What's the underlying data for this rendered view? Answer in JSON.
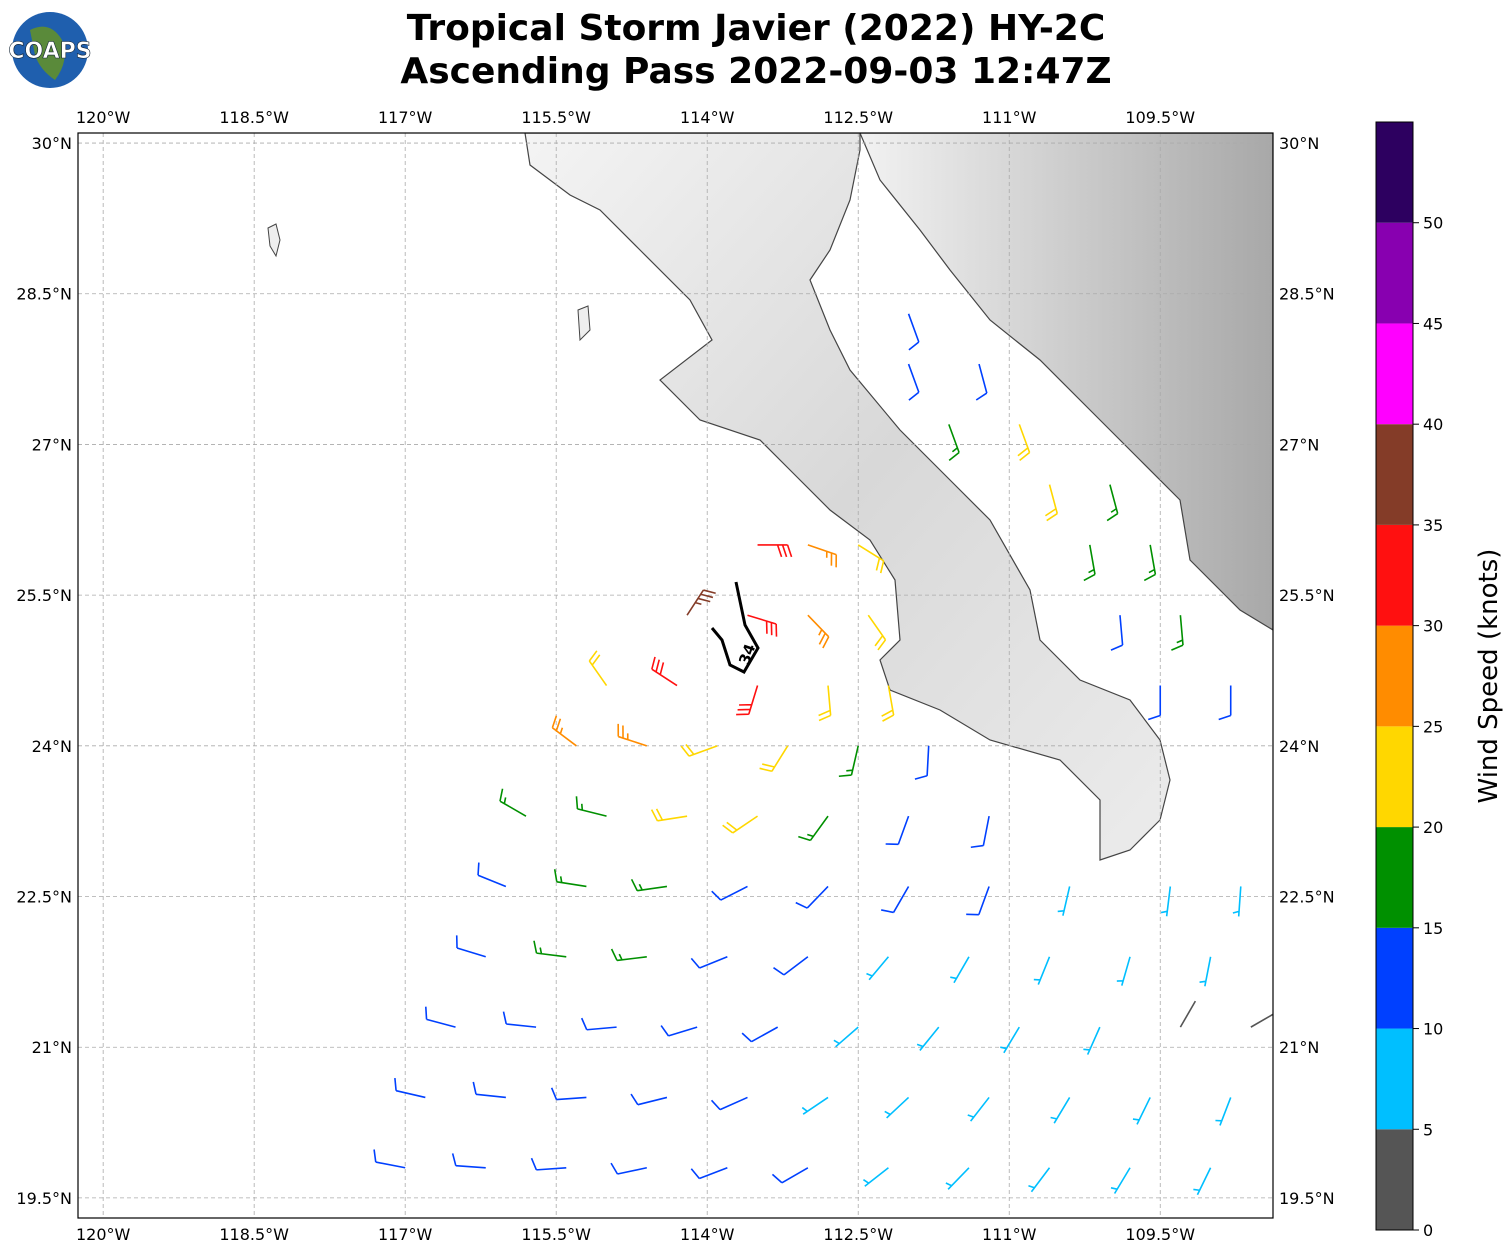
{
  "logo": "COAPS",
  "title": [
    "Tropical Storm Javier (2022) HY-2C",
    "Ascending Pass 2022-09-03 12:47Z"
  ],
  "map": {
    "xlim": [
      -120.25,
      -108.38
    ],
    "ylim": [
      19.3,
      30.1
    ],
    "xticks": [
      {
        "value": -120,
        "label": "120°W"
      },
      {
        "value": -118.5,
        "label": "118.5°W"
      },
      {
        "value": -117,
        "label": "117°W"
      },
      {
        "value": -115.5,
        "label": "115.5°W"
      },
      {
        "value": -114,
        "label": "114°W"
      },
      {
        "value": -112.5,
        "label": "112.5°W"
      },
      {
        "value": -111,
        "label": "111°W"
      },
      {
        "value": -109.5,
        "label": "109.5°W"
      }
    ],
    "yticks": [
      {
        "value": 19.5,
        "label": "19.5°N"
      },
      {
        "value": 21,
        "label": "21°N"
      },
      {
        "value": 22.5,
        "label": "22.5°N"
      },
      {
        "value": 24,
        "label": "24°N"
      },
      {
        "value": 25.5,
        "label": "25.5°N"
      },
      {
        "value": 27,
        "label": "27°N"
      },
      {
        "value": 28.5,
        "label": "28.5°N"
      },
      {
        "value": 30,
        "label": "30°N"
      }
    ],
    "grid": true,
    "track_label": "34",
    "barbs": [
      [
        -113.5,
        26.0,
        30,
        90
      ],
      [
        -113.0,
        26.0,
        25,
        109
      ],
      [
        -112.5,
        26.0,
        22,
        122
      ],
      [
        -114.2,
        25.3,
        38,
        33
      ],
      [
        -113.6,
        25.3,
        33,
        107
      ],
      [
        -113.0,
        25.3,
        27,
        136
      ],
      [
        -112.4,
        25.3,
        22,
        145
      ],
      [
        -115.0,
        24.6,
        20,
        325
      ],
      [
        -114.3,
        24.6,
        32,
        303
      ],
      [
        -113.5,
        24.6,
        30,
        197
      ],
      [
        -112.8,
        24.6,
        24,
        175
      ],
      [
        -112.2,
        24.6,
        22,
        170
      ],
      [
        -115.3,
        24.0,
        25,
        307
      ],
      [
        -114.6,
        24.0,
        26,
        288
      ],
      [
        -113.9,
        24.0,
        24,
        250
      ],
      [
        -113.2,
        24.0,
        22,
        212
      ],
      [
        -112.5,
        24.0,
        18,
        193
      ],
      [
        -111.8,
        24.0,
        14,
        183
      ],
      [
        -115.8,
        23.3,
        17,
        300
      ],
      [
        -115.0,
        23.3,
        19,
        284
      ],
      [
        -114.2,
        23.3,
        22,
        261
      ],
      [
        -113.5,
        23.3,
        20,
        236
      ],
      [
        -112.8,
        23.3,
        17,
        216
      ],
      [
        -112.0,
        23.3,
        13,
        200
      ],
      [
        -111.2,
        23.3,
        14,
        191
      ],
      [
        -116.0,
        22.6,
        12,
        292
      ],
      [
        -115.2,
        22.6,
        17,
        279
      ],
      [
        -114.4,
        22.6,
        17,
        262
      ],
      [
        -113.6,
        22.6,
        14,
        243
      ],
      [
        -112.8,
        22.6,
        13,
        224
      ],
      [
        -112.0,
        22.6,
        12,
        210
      ],
      [
        -111.2,
        22.6,
        11,
        200
      ],
      [
        -110.4,
        22.6,
        8,
        193
      ],
      [
        -109.4,
        22.6,
        8,
        187
      ],
      [
        -108.7,
        22.6,
        8,
        184
      ],
      [
        -116.2,
        21.9,
        13,
        287
      ],
      [
        -115.4,
        21.9,
        16,
        277
      ],
      [
        -114.6,
        21.9,
        17,
        263
      ],
      [
        -113.8,
        21.9,
        13,
        248
      ],
      [
        -113.0,
        21.9,
        12,
        233
      ],
      [
        -112.2,
        21.9,
        9,
        220
      ],
      [
        -111.4,
        21.9,
        8,
        210
      ],
      [
        -110.6,
        21.9,
        7,
        202
      ],
      [
        -109.8,
        21.9,
        7,
        196
      ],
      [
        -109.0,
        21.9,
        6,
        191
      ],
      [
        -116.5,
        21.2,
        12,
        285
      ],
      [
        -115.7,
        21.2,
        13,
        276
      ],
      [
        -114.9,
        21.2,
        13,
        265
      ],
      [
        -114.1,
        21.2,
        12,
        253
      ],
      [
        -113.3,
        21.2,
        12,
        241
      ],
      [
        -112.5,
        21.2,
        9,
        229
      ],
      [
        -111.7,
        21.2,
        8,
        219
      ],
      [
        -110.9,
        21.2,
        7,
        211
      ],
      [
        -110.1,
        21.2,
        6,
        204
      ],
      [
        -109.3,
        21.2,
        4,
        30
      ],
      [
        -108.6,
        21.2,
        4,
        60
      ],
      [
        -116.8,
        20.5,
        11,
        283
      ],
      [
        -116.0,
        20.5,
        12,
        276
      ],
      [
        -115.2,
        20.5,
        12,
        266
      ],
      [
        -114.4,
        20.5,
        11,
        256
      ],
      [
        -113.6,
        20.5,
        12,
        246
      ],
      [
        -112.8,
        20.5,
        9,
        236
      ],
      [
        -112.0,
        20.5,
        8,
        227
      ],
      [
        -111.2,
        20.5,
        7,
        218
      ],
      [
        -110.4,
        20.5,
        7,
        211
      ],
      [
        -109.6,
        20.5,
        6,
        206
      ],
      [
        -108.8,
        20.5,
        7,
        201
      ],
      [
        -117.0,
        19.8,
        11,
        281
      ],
      [
        -116.2,
        19.8,
        11,
        274
      ],
      [
        -115.4,
        19.8,
        11,
        266
      ],
      [
        -114.6,
        19.8,
        11,
        258
      ],
      [
        -113.8,
        19.8,
        11,
        249
      ],
      [
        -113.0,
        19.8,
        10,
        240
      ],
      [
        -112.2,
        19.8,
        8,
        232
      ],
      [
        -111.4,
        19.8,
        7,
        224
      ],
      [
        -110.6,
        19.8,
        7,
        217
      ],
      [
        -109.8,
        19.8,
        7,
        211
      ],
      [
        -109.0,
        19.8,
        7,
        206
      ],
      [
        -112.0,
        28.3,
        11,
        160
      ],
      [
        -112.0,
        27.8,
        12,
        160
      ],
      [
        -111.3,
        27.8,
        13,
        165
      ],
      [
        -111.6,
        27.2,
        18,
        160
      ],
      [
        -110.9,
        27.2,
        21,
        160
      ],
      [
        -110.6,
        26.6,
        20,
        165
      ],
      [
        -110.0,
        26.6,
        17,
        165
      ],
      [
        -110.2,
        26.0,
        18,
        170
      ],
      [
        -109.6,
        26.0,
        16,
        170
      ],
      [
        -109.9,
        25.3,
        13,
        175
      ],
      [
        -109.3,
        25.3,
        17,
        175
      ],
      [
        -109.5,
        24.6,
        12,
        180
      ],
      [
        -108.8,
        24.6,
        13,
        180
      ]
    ]
  },
  "colorbar": {
    "label": "Wind Speed (knots)",
    "clim": [
      0,
      55
    ],
    "ticks": [
      0,
      5,
      10,
      15,
      20,
      25,
      30,
      35,
      40,
      45,
      50
    ],
    "colors": [
      "#555555",
      "#00bfff",
      "#0040ff",
      "#009000",
      "#ffd700",
      "#ff8c00",
      "#ff1010",
      "#843c28",
      "#ff00ff",
      "#8800b0",
      "#2d0060"
    ]
  }
}
